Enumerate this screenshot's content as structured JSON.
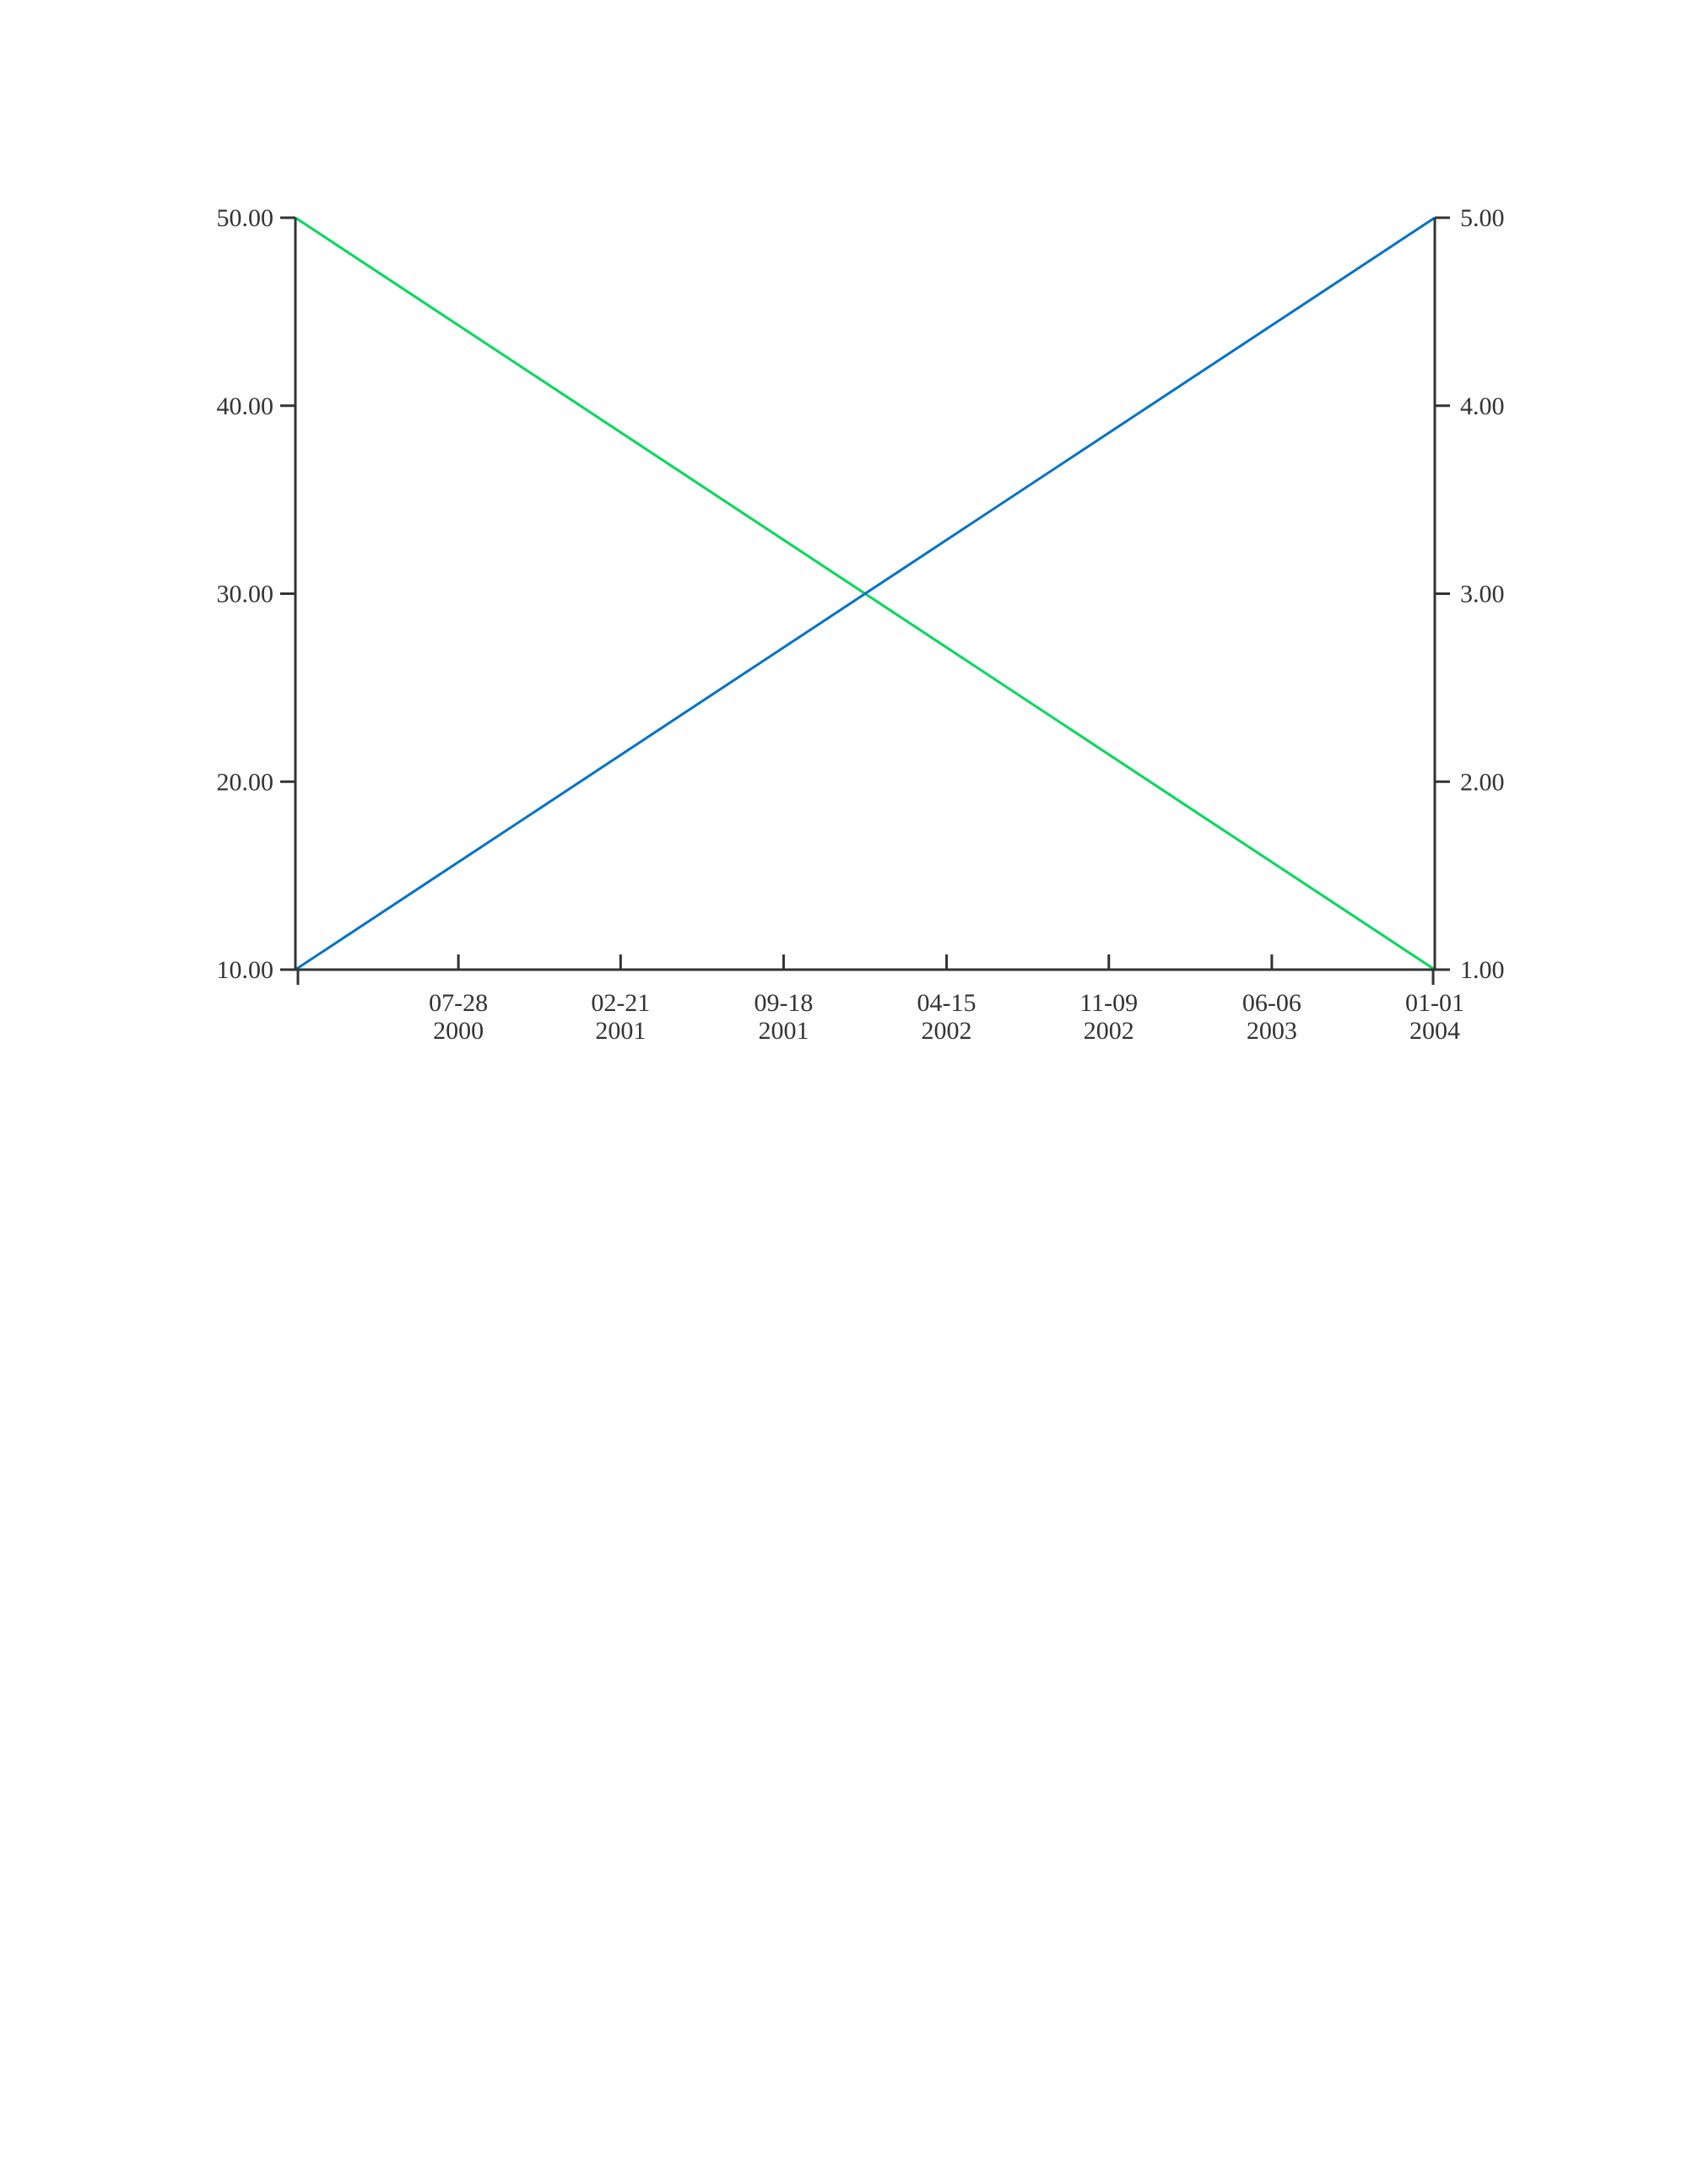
{
  "chart_data": {
    "type": "line",
    "x_type": "date",
    "x_tick_labels": [
      {
        "date": "2000-07-28",
        "line1": "07-28",
        "line2": "2000"
      },
      {
        "date": "2001-02-21",
        "line1": "02-21",
        "line2": "2001"
      },
      {
        "date": "2001-09-18",
        "line1": "09-18",
        "line2": "2001"
      },
      {
        "date": "2002-04-15",
        "line1": "04-15",
        "line2": "2002"
      },
      {
        "date": "2002-11-09",
        "line1": "11-09",
        "line2": "2002"
      },
      {
        "date": "2003-06-06",
        "line1": "06-06",
        "line2": "2003"
      },
      {
        "date": "2004-01-01",
        "line1": "01-01",
        "line2": "2004"
      }
    ],
    "xlim": [
      "2000-01-01",
      "2004-01-01"
    ],
    "y_left": {
      "ylim": [
        10,
        50
      ],
      "ticks": [
        "10.00",
        "20.00",
        "30.00",
        "40.00",
        "50.00"
      ]
    },
    "y_right": {
      "ylim": [
        1,
        5
      ],
      "ticks": [
        "1.00",
        "2.00",
        "3.00",
        "4.00",
        "5.00"
      ]
    },
    "series": [
      {
        "axis": "left",
        "color": "#00d95a",
        "points": [
          {
            "x": "2000-01-01",
            "y": 50
          },
          {
            "x": "2004-01-01",
            "y": 10
          }
        ]
      },
      {
        "axis": "right",
        "color": "#0072c9",
        "points": [
          {
            "x": "2000-01-01",
            "y": 1
          },
          {
            "x": "2004-01-01",
            "y": 5
          }
        ]
      }
    ],
    "grid": false,
    "legend": "none",
    "title": "",
    "xlabel": "",
    "ylabel": ""
  }
}
